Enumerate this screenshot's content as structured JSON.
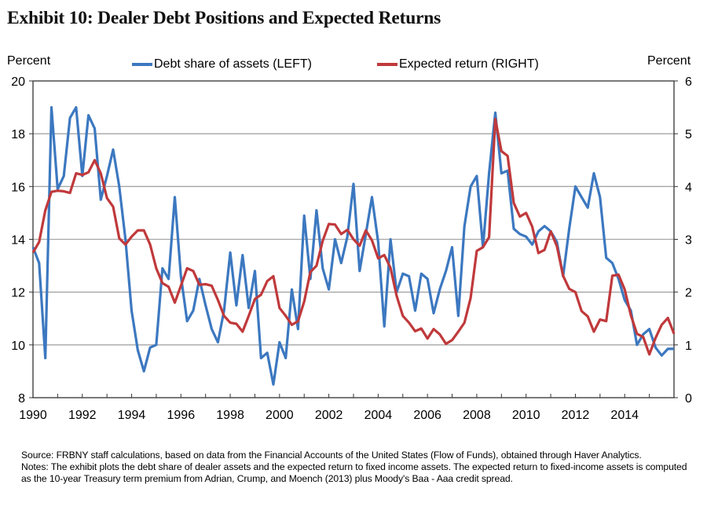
{
  "title": "Exhibit 10: Dealer Debt Positions and Expected Returns",
  "chart_data": {
    "type": "line",
    "title": "Exhibit 10: Dealer Debt Positions and Expected Returns",
    "xlabel": "",
    "ylabel_left": "Percent",
    "ylabel_right": "Percent",
    "x_range": [
      1990,
      2016
    ],
    "x_ticks": [
      "1990",
      "1992",
      "1994",
      "1996",
      "1998",
      "2000",
      "2002",
      "2004",
      "2006",
      "2008",
      "2010",
      "2012",
      "2014"
    ],
    "x_tick_years": [
      1990,
      1992,
      1994,
      1996,
      1998,
      2000,
      2002,
      2004,
      2006,
      2008,
      2010,
      2012,
      2014
    ],
    "ylim_left": [
      8,
      20
    ],
    "yticks_left": [
      "8",
      "10",
      "12",
      "14",
      "16",
      "18",
      "20"
    ],
    "ylim_right": [
      0,
      6
    ],
    "yticks_right": [
      "0",
      "1",
      "2",
      "3",
      "4",
      "5",
      "6"
    ],
    "grid": true,
    "legend_position": "top",
    "x_frequency": "quarterly",
    "x_start": 1990.0,
    "series": [
      {
        "name": "Debt share of assets (LEFT)",
        "axis": "left",
        "color": "#3c78c0",
        "values": [
          13.7,
          13.1,
          9.5,
          19.0,
          15.9,
          16.4,
          18.6,
          19.0,
          16.4,
          18.7,
          18.2,
          15.5,
          16.4,
          17.4,
          16.0,
          14.0,
          11.3,
          9.8,
          9.0,
          9.9,
          10.0,
          12.9,
          12.5,
          15.6,
          12.6,
          10.9,
          11.3,
          12.5,
          11.5,
          10.6,
          10.1,
          11.3,
          13.5,
          11.5,
          13.4,
          11.4,
          12.8,
          9.5,
          9.7,
          8.5,
          10.1,
          9.5,
          12.1,
          10.6,
          14.9,
          12.5,
          15.1,
          12.9,
          12.1,
          14.0,
          13.1,
          14.1,
          16.1,
          12.8,
          14.2,
          15.6,
          13.9,
          10.7,
          14.0,
          12.0,
          12.7,
          12.6,
          11.3,
          12.7,
          12.5,
          11.2,
          12.1,
          12.8,
          13.7,
          11.1,
          14.5,
          16.0,
          16.4,
          13.7,
          16.5,
          18.8,
          16.5,
          16.6,
          14.4,
          14.2,
          14.1,
          13.8,
          14.3,
          14.5,
          14.3,
          13.9,
          12.6,
          14.4,
          16.0,
          15.6,
          15.2,
          16.5,
          15.6,
          13.3,
          13.1,
          12.5,
          11.7,
          11.3,
          10.0,
          10.4,
          10.6,
          9.9,
          9.6,
          9.85,
          9.85
        ]
      },
      {
        "name": "Expected return (RIGHT)",
        "axis": "right",
        "color": "#c0393b",
        "values": [
          2.75,
          2.95,
          3.55,
          3.9,
          3.92,
          3.91,
          3.88,
          4.25,
          4.22,
          4.27,
          4.5,
          4.25,
          3.78,
          3.62,
          3.02,
          2.9,
          3.05,
          3.17,
          3.17,
          2.9,
          2.45,
          2.17,
          2.1,
          1.8,
          2.12,
          2.45,
          2.4,
          2.14,
          2.15,
          2.12,
          1.85,
          1.55,
          1.42,
          1.4,
          1.25,
          1.55,
          1.87,
          1.95,
          2.21,
          2.3,
          1.7,
          1.55,
          1.38,
          1.45,
          1.82,
          2.38,
          2.5,
          2.97,
          3.29,
          3.28,
          3.1,
          3.18,
          3.0,
          2.88,
          3.17,
          2.98,
          2.64,
          2.7,
          2.46,
          1.93,
          1.55,
          1.42,
          1.26,
          1.31,
          1.12,
          1.3,
          1.2,
          1.02,
          1.09,
          1.25,
          1.42,
          1.89,
          2.78,
          2.85,
          3.04,
          5.28,
          4.67,
          4.58,
          3.69,
          3.43,
          3.5,
          3.24,
          2.74,
          2.8,
          3.15,
          2.87,
          2.31,
          2.06,
          2.0,
          1.64,
          1.54,
          1.25,
          1.48,
          1.45,
          2.31,
          2.33,
          2.05,
          1.56,
          1.21,
          1.15,
          0.82,
          1.13,
          1.38,
          1.51,
          1.21
        ]
      }
    ]
  },
  "footer": {
    "source": "Source: FRBNY staff calculations, based on data from the Financial Accounts of the United States (Flow of Funds), obtained through Haver Analytics.",
    "notes": "Notes: The exhibit plots the debt share of dealer assets and the expected return to fixed income assets. The expected return to fixed-income assets is computed as the 10-year Treasury term premium from Adrian, Crump, and Moench (2013) plus Moody's Baa - Aaa credit spread."
  }
}
